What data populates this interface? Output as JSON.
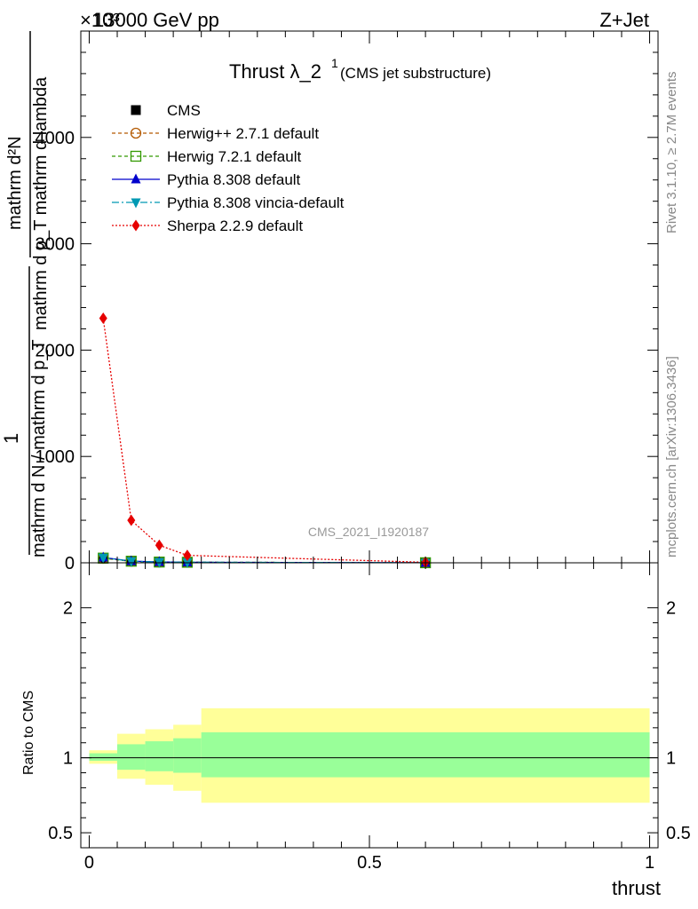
{
  "header": {
    "energy_label": "13000 GeV pp",
    "process_label": "Z+Jet",
    "exponent_label": "×10³"
  },
  "side_labels": {
    "rivet": "Rivet 3.1.10, ≥ 2.7M events",
    "mcplots": "mcplots.cern.ch [arXiv:1306.3436]"
  },
  "chart_data": [
    {
      "type": "line",
      "title": "Thrust λ_2",
      "title_superscript": "1",
      "subtitle": "(CMS jet substructure)",
      "watermark": "CMS_2021_I1920187",
      "ylabel_numerator": "mathrm d²N",
      "ylabel_denominator": "mathrm d p_T mathrm d lambda",
      "ylabel_prefactor_numerator": "1",
      "ylabel_prefactor_denominator": "mathrm d N / mathrm d p_T",
      "xlim": [
        -0.015,
        1.015
      ],
      "ylim": [
        0,
        5000
      ],
      "y_scale_note": "values ×1000",
      "yticks": [
        0,
        1000,
        2000,
        3000,
        4000
      ],
      "ytick_labels": [
        "0",
        "1000",
        "2000",
        "3000",
        "4000"
      ],
      "legend_position": "top-left",
      "series": [
        {
          "name": "CMS",
          "color": "#000000",
          "marker": "square",
          "x": [
            0.025,
            0.075,
            0.125,
            0.175,
            0.6
          ],
          "y": [
            40,
            14,
            7,
            5,
            0.5
          ]
        },
        {
          "name": "Herwig++ 2.7.1 default",
          "color": "#b35900",
          "marker": "circle-open",
          "dash": "4,3",
          "x": [
            0.025,
            0.075,
            0.125,
            0.175,
            0.6
          ],
          "y": [
            42,
            14,
            7,
            5,
            0.5
          ]
        },
        {
          "name": "Herwig 7.2.1 default",
          "color": "#339900",
          "marker": "square-open",
          "dash": "4,3",
          "x": [
            0.025,
            0.075,
            0.125,
            0.175,
            0.6
          ],
          "y": [
            44,
            15,
            7,
            5,
            0.5
          ]
        },
        {
          "name": "Pythia 8.308 default",
          "color": "#0000cc",
          "marker": "triangle-up",
          "x": [
            0.025,
            0.075,
            0.125,
            0.175,
            0.6
          ],
          "y": [
            50,
            16,
            8,
            5,
            0.5
          ]
        },
        {
          "name": "Pythia 8.308 vincia-default",
          "color": "#0099b3",
          "marker": "triangle-down",
          "dash": "8,3,2,3",
          "x": [
            0.025,
            0.075,
            0.125,
            0.175,
            0.6
          ],
          "y": [
            48,
            15,
            7,
            5,
            0.5
          ]
        },
        {
          "name": "Sherpa 2.2.9 default",
          "color": "#e60000",
          "marker": "diamond",
          "dash": "2,2",
          "x": [
            0.025,
            0.075,
            0.125,
            0.175,
            0.6
          ],
          "y": [
            2300,
            400,
            165,
            70,
            5
          ]
        }
      ]
    },
    {
      "type": "area",
      "ylabel": "Ratio to CMS",
      "xlabel": "thrust",
      "xlim": [
        -0.015,
        1.015
      ],
      "ylim": [
        0.4,
        2.3
      ],
      "yticks": [
        0.5,
        1,
        2
      ],
      "ytick_labels": [
        "0.5",
        "1",
        "2"
      ],
      "xticks": [
        0,
        0.5,
        1
      ],
      "xtick_labels": [
        "0",
        "0.5",
        "1"
      ],
      "reference_line": 1,
      "band_colors": {
        "inner": "#99ff99",
        "outer": "#ffff99"
      },
      "bins": [
        {
          "x0": 0.0,
          "x1": 0.05,
          "inner": [
            0.98,
            1.03
          ],
          "outer": [
            0.96,
            1.05
          ]
        },
        {
          "x0": 0.05,
          "x1": 0.1,
          "inner": [
            0.92,
            1.09
          ],
          "outer": [
            0.86,
            1.16
          ]
        },
        {
          "x0": 0.1,
          "x1": 0.15,
          "inner": [
            0.91,
            1.11
          ],
          "outer": [
            0.82,
            1.19
          ]
        },
        {
          "x0": 0.15,
          "x1": 0.2,
          "inner": [
            0.9,
            1.13
          ],
          "outer": [
            0.78,
            1.22
          ]
        },
        {
          "x0": 0.2,
          "x1": 1.0,
          "inner": [
            0.87,
            1.17
          ],
          "outer": [
            0.7,
            1.33
          ]
        }
      ]
    }
  ]
}
